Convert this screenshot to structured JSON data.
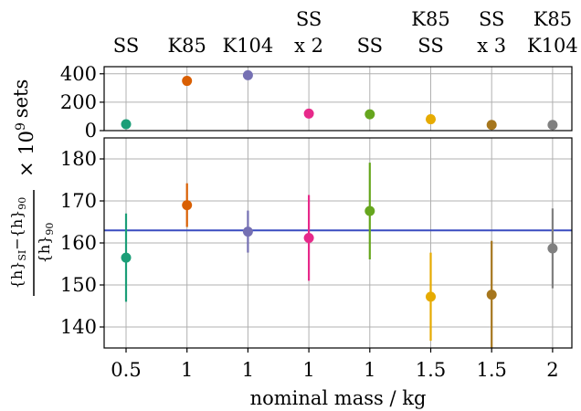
{
  "chart_data": {
    "type": "scatter",
    "xlabel": "nominal mass / kg",
    "categories": [
      "0.5",
      "1",
      "1",
      "1",
      "1",
      "1.5",
      "1.5",
      "2"
    ],
    "top_labels": [
      [
        "SS"
      ],
      [
        "K85"
      ],
      [
        "K104"
      ],
      [
        "SS",
        "x 2"
      ],
      [
        "SS"
      ],
      [
        "K85",
        "SS"
      ],
      [
        "SS",
        "x 3"
      ],
      [
        "K85",
        "K104"
      ]
    ],
    "colors": [
      "#1b9e77",
      "#d95f02",
      "#7570b3",
      "#e7298a",
      "#66a61e",
      "#e6ab02",
      "#a6761d",
      "#808080"
    ],
    "top_panel": {
      "ylabel": "sets",
      "ylim": [
        0,
        450
      ],
      "yticks": [
        0,
        200,
        400
      ],
      "values": [
        45,
        350,
        390,
        120,
        115,
        80,
        40,
        40
      ]
    },
    "bottom_panel": {
      "ylabel_base": "× 10",
      "ylabel_exp": "9",
      "ylim": [
        135,
        185
      ],
      "yticks": [
        140,
        150,
        160,
        170,
        180
      ],
      "values": [
        156.5,
        169,
        162.7,
        161.2,
        167.6,
        147.2,
        147.7,
        158.7
      ],
      "error": [
        10.5,
        5.2,
        5.0,
        10.2,
        11.5,
        10.5,
        12.8,
        9.5
      ],
      "hline": 163
    },
    "grid": true
  }
}
